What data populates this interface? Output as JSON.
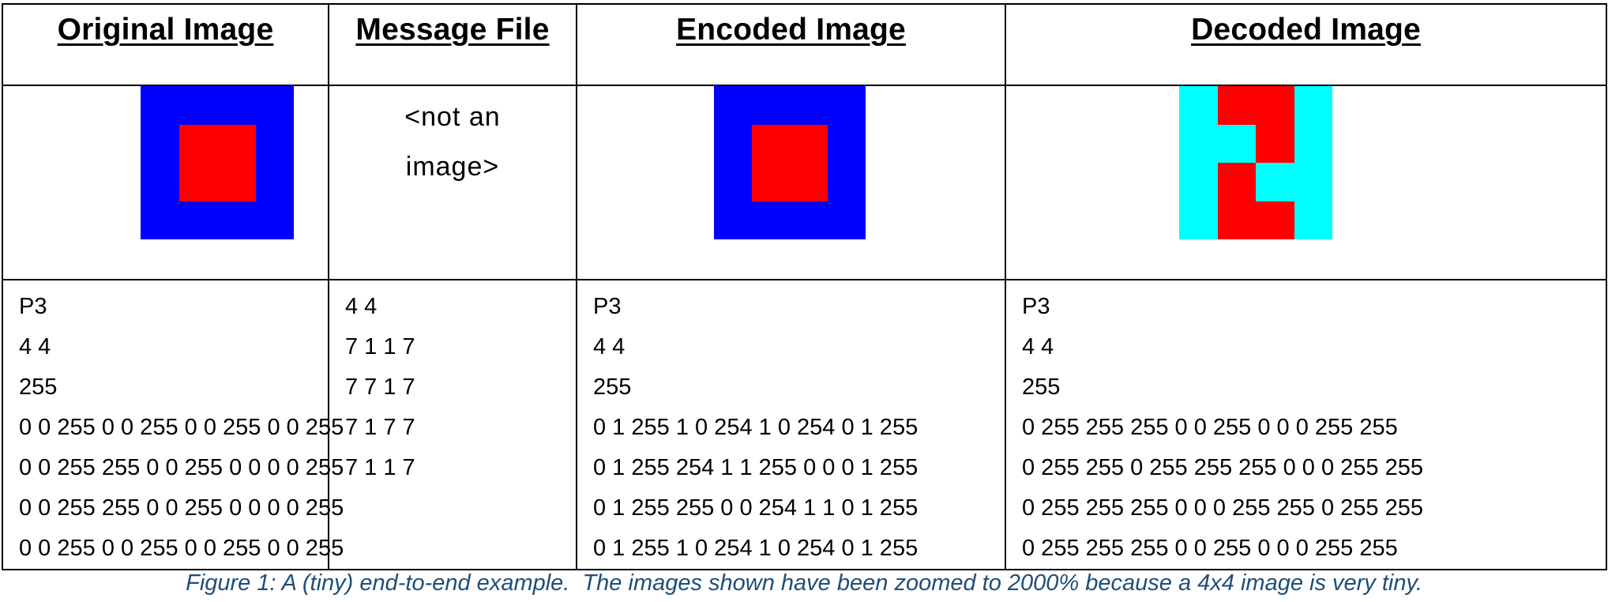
{
  "columns": [
    {
      "header": "Original Image",
      "image": {
        "pixels": [
          [
            "#0000ff",
            "#0000ff",
            "#0000ff",
            "#0000ff"
          ],
          [
            "#0000ff",
            "#ff0000",
            "#ff0000",
            "#0000ff"
          ],
          [
            "#0000ff",
            "#ff0000",
            "#ff0000",
            "#0000ff"
          ],
          [
            "#0000ff",
            "#0000ff",
            "#0000ff",
            "#0000ff"
          ]
        ]
      },
      "lines": [
        "P3",
        "4 4",
        "255",
        "0 0 255 0 0 255 0 0 255 0 0 255",
        "0 0 255 255 0 0 255 0 0 0 0 255",
        "0 0 255 255 0 0 255 0 0 0 0 255",
        "0 0 255 0 0 255 0 0 255 0 0 255"
      ]
    },
    {
      "header": "Message File",
      "not_image_text": [
        "<not an",
        "image>"
      ],
      "lines": [
        "4 4",
        "7 1 1 7",
        "7 7 1 7",
        "7 1 7 7",
        "7 1 1 7"
      ]
    },
    {
      "header": "Encoded Image",
      "image": {
        "pixels": [
          [
            "#0000ff",
            "#0000ff",
            "#0000ff",
            "#0000ff"
          ],
          [
            "#0000ff",
            "#ff0000",
            "#ff0000",
            "#0000ff"
          ],
          [
            "#0000ff",
            "#ff0000",
            "#ff0000",
            "#0000ff"
          ],
          [
            "#0000ff",
            "#0000ff",
            "#0000ff",
            "#0000ff"
          ]
        ]
      },
      "lines": [
        "P3",
        "4 4",
        "255",
        "0 1 255 1 0 254 1 0 254 0 1 255",
        "0 1 255 254 1 1 255 0 0 0 1 255",
        "0 1 255 255 0 0 254 1 1 0 1 255",
        "0 1 255 1 0 254 1 0 254 0 1 255"
      ]
    },
    {
      "header": "Decoded Image",
      "image": {
        "pixels": [
          [
            "#00ffff",
            "#ff0000",
            "#ff0000",
            "#00ffff"
          ],
          [
            "#00ffff",
            "#00ffff",
            "#ff0000",
            "#00ffff"
          ],
          [
            "#00ffff",
            "#ff0000",
            "#00ffff",
            "#00ffff"
          ],
          [
            "#00ffff",
            "#ff0000",
            "#ff0000",
            "#00ffff"
          ]
        ]
      },
      "lines": [
        "P3",
        "4 4",
        "255",
        "0 255 255 255 0 0 255 0 0 0 255 255",
        "0 255 255 0 255 255 255 0 0 0 255 255",
        "0 255 255 255 0 0 0 255 255 0 255 255",
        "0 255 255 255 0 0 255 0 0 0 255 255"
      ]
    }
  ],
  "caption": "Figure 1: A (tiny) end-to-end example.  The images shown have been zoomed to 2000% because a 4x4 image is very tiny."
}
